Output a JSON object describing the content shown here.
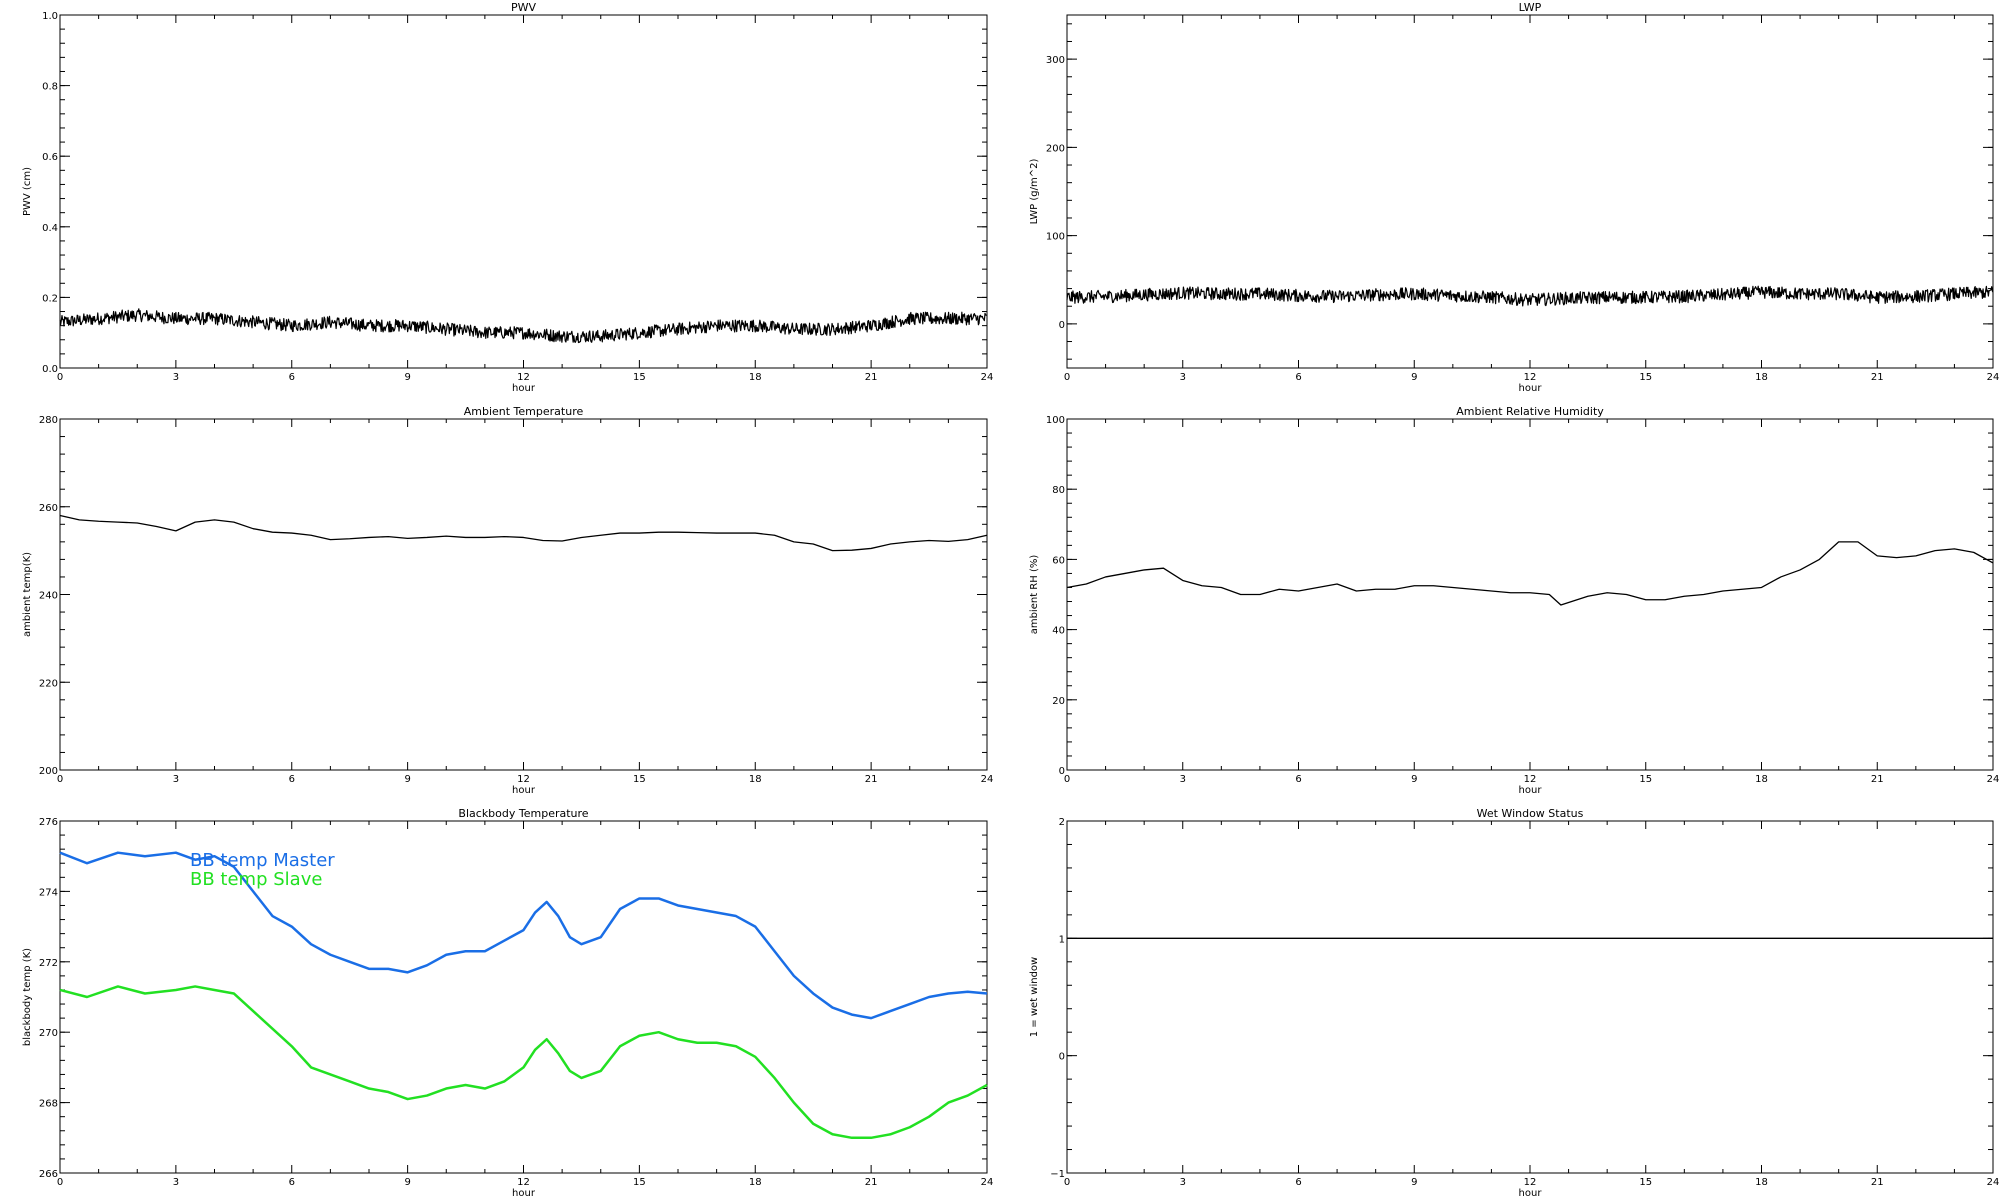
{
  "chart_data": [
    {
      "type": "line",
      "title": "PWV",
      "xlabel": "hour",
      "ylabel": "PWV (cm)",
      "xlim": [
        0,
        24
      ],
      "ylim": [
        0.0,
        1.0
      ],
      "xticks": [
        "0",
        "3",
        "6",
        "9",
        "12",
        "15",
        "18",
        "21",
        "24"
      ],
      "yticks": [
        "0.0",
        "0.2",
        "0.4",
        "0.6",
        "0.8",
        "1.0"
      ],
      "noisy": true,
      "series": [
        {
          "name": "",
          "color": "#000000",
          "x": [
            0,
            1,
            2,
            3,
            4,
            5,
            6,
            7,
            8,
            9,
            10,
            11,
            12,
            13,
            14,
            15,
            16,
            17,
            18,
            19,
            20,
            21,
            22,
            23,
            24
          ],
          "y": [
            0.13,
            0.14,
            0.15,
            0.14,
            0.14,
            0.13,
            0.12,
            0.13,
            0.12,
            0.12,
            0.11,
            0.1,
            0.1,
            0.09,
            0.09,
            0.1,
            0.11,
            0.12,
            0.12,
            0.11,
            0.11,
            0.12,
            0.14,
            0.14,
            0.14
          ]
        }
      ]
    },
    {
      "type": "line",
      "title": "LWP",
      "xlabel": "hour",
      "ylabel": "LWP (g/m^2)",
      "xlim": [
        0,
        24
      ],
      "ylim": [
        -50,
        350
      ],
      "xticks": [
        "0",
        "3",
        "6",
        "9",
        "12",
        "15",
        "18",
        "21",
        "24"
      ],
      "yticks": [
        "0",
        "100",
        "200",
        "300"
      ],
      "ytick_values": [
        0,
        100,
        200,
        300
      ],
      "noisy": true,
      "series": [
        {
          "name": "",
          "color": "#000000",
          "x": [
            0,
            1,
            2,
            3,
            4,
            5,
            6,
            7,
            8,
            9,
            10,
            11,
            12,
            13,
            14,
            15,
            16,
            17,
            18,
            19,
            20,
            21,
            22,
            23,
            24
          ],
          "y": [
            30,
            31,
            33,
            35,
            34,
            34,
            32,
            31,
            33,
            34,
            32,
            30,
            27,
            29,
            30,
            30,
            31,
            33,
            36,
            34,
            34,
            30,
            31,
            34,
            36
          ]
        }
      ]
    },
    {
      "type": "line",
      "title": "Ambient Temperature",
      "xlabel": "hour",
      "ylabel": "ambient temp(K)",
      "xlim": [
        0,
        24
      ],
      "ylim": [
        200,
        280
      ],
      "xticks": [
        "0",
        "3",
        "6",
        "9",
        "12",
        "15",
        "18",
        "21",
        "24"
      ],
      "yticks": [
        "200",
        "220",
        "240",
        "260",
        "280"
      ],
      "series": [
        {
          "name": "",
          "color": "#000000",
          "x": [
            0,
            0.5,
            1,
            1.5,
            2,
            2.5,
            3,
            3.5,
            4,
            4.5,
            5,
            5.5,
            6,
            6.5,
            7,
            7.5,
            8,
            8.5,
            9,
            9.5,
            10,
            10.5,
            11,
            11.5,
            12,
            12.5,
            13,
            13.5,
            14,
            14.5,
            15,
            15.5,
            16,
            16.5,
            17,
            17.5,
            18,
            18.5,
            19,
            19.5,
            20,
            20.5,
            21,
            21.5,
            22,
            22.5,
            23,
            23.5,
            24
          ],
          "y": [
            258,
            257,
            256.7,
            256.5,
            256.3,
            255.5,
            254.5,
            256.5,
            257,
            256.5,
            255,
            254.2,
            254,
            253.5,
            252.5,
            252.7,
            253,
            253.2,
            252.8,
            253,
            253.3,
            253,
            253,
            253.2,
            253,
            252.3,
            252.2,
            253,
            253.5,
            254,
            254,
            254.2,
            254.2,
            254.1,
            254,
            254,
            254,
            253.5,
            252,
            251.5,
            250,
            250.1,
            250.5,
            251.5,
            252,
            252.3,
            252.1,
            252.5,
            253.5
          ]
        }
      ]
    },
    {
      "type": "line",
      "title": "Ambient Relative Humidity",
      "xlabel": "hour",
      "ylabel": "ambient RH (%)",
      "xlim": [
        0,
        24
      ],
      "ylim": [
        0,
        100
      ],
      "xticks": [
        "0",
        "3",
        "6",
        "9",
        "12",
        "15",
        "18",
        "21",
        "24"
      ],
      "yticks": [
        "0",
        "20",
        "40",
        "60",
        "80",
        "100"
      ],
      "series": [
        {
          "name": "",
          "color": "#000000",
          "x": [
            0,
            0.5,
            1,
            1.5,
            2,
            2.5,
            3,
            3.5,
            4,
            4.5,
            5,
            5.5,
            6,
            6.5,
            7,
            7.5,
            8,
            8.5,
            9,
            9.5,
            10,
            10.5,
            11,
            11.5,
            12,
            12.5,
            12.8,
            13.5,
            14,
            14.5,
            15,
            15.5,
            16,
            16.5,
            17,
            17.5,
            18,
            18.5,
            19,
            19.5,
            20,
            20.5,
            21,
            21.5,
            22,
            22.5,
            23,
            23.5,
            24
          ],
          "y": [
            52,
            53,
            55,
            56,
            57,
            57.5,
            54,
            52.5,
            52,
            50,
            50,
            51.5,
            51,
            52,
            53,
            51,
            51.5,
            51.5,
            52.5,
            52.5,
            52,
            51.5,
            51,
            50.5,
            50.5,
            50,
            47,
            49.5,
            50.5,
            50,
            48.5,
            48.5,
            49.5,
            50,
            51,
            51.5,
            52,
            55,
            57,
            60,
            65,
            65,
            61,
            60.5,
            61,
            62.5,
            63,
            62,
            59
          ]
        }
      ]
    },
    {
      "type": "line",
      "title": "Blackbody Temperature",
      "xlabel": "hour",
      "ylabel": "blackbody temp (K)",
      "xlim": [
        0,
        24
      ],
      "ylim": [
        266,
        276
      ],
      "xticks": [
        "0",
        "3",
        "6",
        "9",
        "12",
        "15",
        "18",
        "21",
        "24"
      ],
      "yticks": [
        "266",
        "268",
        "270",
        "272",
        "274",
        "276"
      ],
      "series": [
        {
          "name": "BB temp Master",
          "color": "#1a6ee6",
          "x": [
            0,
            0.7,
            1.5,
            2.2,
            3,
            3.5,
            4,
            4.5,
            5,
            5.5,
            6,
            6.5,
            7,
            7.5,
            8,
            8.5,
            9,
            9.5,
            10,
            10.5,
            11,
            11.5,
            12,
            12.3,
            12.6,
            12.9,
            13.2,
            13.5,
            14,
            14.5,
            15,
            15.5,
            16,
            16.5,
            17,
            17.5,
            18,
            18.5,
            19,
            19.5,
            20,
            20.5,
            21,
            21.5,
            22,
            22.5,
            23,
            23.5,
            24
          ],
          "y": [
            275.1,
            274.8,
            275.1,
            275.0,
            275.1,
            274.9,
            275.0,
            274.7,
            274.0,
            273.3,
            273.0,
            272.5,
            272.2,
            272.0,
            271.8,
            271.8,
            271.7,
            271.9,
            272.2,
            272.3,
            272.3,
            272.6,
            272.9,
            273.4,
            273.7,
            273.3,
            272.7,
            272.5,
            272.7,
            273.5,
            273.8,
            273.8,
            273.6,
            273.5,
            273.4,
            273.3,
            273.0,
            272.3,
            271.6,
            271.1,
            270.7,
            270.5,
            270.4,
            270.6,
            270.8,
            271.0,
            271.1,
            271.15,
            271.1
          ]
        },
        {
          "name": "BB temp Slave",
          "color": "#22e022",
          "x": [
            0,
            0.7,
            1.5,
            2.2,
            3,
            3.5,
            4,
            4.5,
            5,
            5.5,
            6,
            6.5,
            7,
            7.5,
            8,
            8.5,
            9,
            9.5,
            10,
            10.5,
            11,
            11.5,
            12,
            12.3,
            12.6,
            12.9,
            13.2,
            13.5,
            14,
            14.5,
            15,
            15.5,
            16,
            16.5,
            17,
            17.5,
            18,
            18.5,
            19,
            19.5,
            20,
            20.5,
            21,
            21.5,
            22,
            22.5,
            23,
            23.5,
            24
          ],
          "y": [
            271.2,
            271.0,
            271.3,
            271.1,
            271.2,
            271.3,
            271.2,
            271.1,
            270.6,
            270.1,
            269.6,
            269.0,
            268.8,
            268.6,
            268.4,
            268.3,
            268.1,
            268.2,
            268.4,
            268.5,
            268.4,
            268.6,
            269.0,
            269.5,
            269.8,
            269.4,
            268.9,
            268.7,
            268.9,
            269.6,
            269.9,
            270.0,
            269.8,
            269.7,
            269.7,
            269.6,
            269.3,
            268.7,
            268.0,
            267.4,
            267.1,
            267.0,
            267.0,
            267.1,
            267.3,
            267.6,
            268.0,
            268.2,
            268.5
          ]
        }
      ]
    },
    {
      "type": "line",
      "title": "Wet Window Status",
      "xlabel": "hour",
      "ylabel": "1 = wet window",
      "xlim": [
        0,
        24
      ],
      "ylim": [
        -1,
        2
      ],
      "xticks": [
        "0",
        "3",
        "6",
        "9",
        "12",
        "15",
        "18",
        "21",
        "24"
      ],
      "yticks": [
        "−1",
        "0",
        "1",
        "2"
      ],
      "ytick_values": [
        -1,
        0,
        1,
        2
      ],
      "series": [
        {
          "name": "",
          "color": "#000000",
          "x": [
            0,
            24
          ],
          "y": [
            1,
            1
          ]
        }
      ]
    }
  ]
}
